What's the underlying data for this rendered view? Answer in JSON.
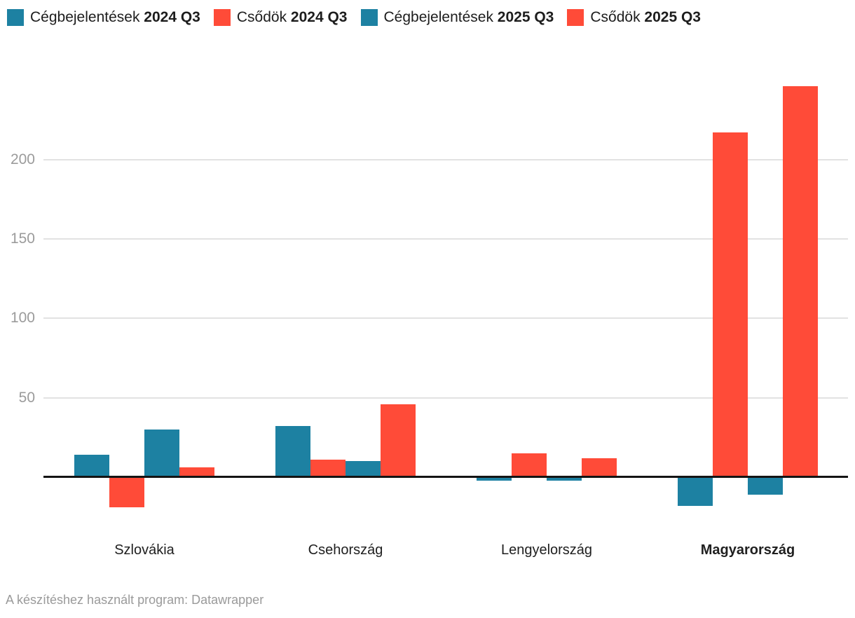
{
  "legend": {
    "items": [
      {
        "name": "Cégbejelentések",
        "period": "2024 Q3",
        "series_index": 0
      },
      {
        "name": "Csődök",
        "period": "2024 Q3",
        "series_index": 1
      },
      {
        "name": "Cégbejelentések",
        "period": "2025 Q3",
        "series_index": 2
      },
      {
        "name": "Csődök",
        "period": "2025 Q3",
        "series_index": 3
      }
    ]
  },
  "chart_data": {
    "type": "bar",
    "title": "",
    "categories": [
      "Szlovákia",
      "Csehország",
      "Lengyelország",
      "Magyarország"
    ],
    "bold_category": "Magyarország",
    "series": [
      {
        "name": "Cégbejelentések 2024 Q3",
        "color": "#1d81a2",
        "values": [
          14,
          32,
          -2,
          -18
        ]
      },
      {
        "name": "Csődök 2024 Q3",
        "color": "#ff4b38",
        "values": [
          -19,
          11,
          15,
          217
        ]
      },
      {
        "name": "Cégbejelentések 2025 Q3",
        "color": "#1d81a2",
        "values": [
          30,
          10,
          -2,
          -11
        ]
      },
      {
        "name": "Csődök 2025 Q3",
        "color": "#ff4b38",
        "values": [
          6,
          46,
          12,
          246
        ]
      }
    ],
    "xlabel": "",
    "ylabel": "",
    "yticks": [
      50,
      100,
      150,
      200
    ],
    "ylim": [
      -30,
      255
    ],
    "grid": "horizontal-only",
    "legend_position": "top-left",
    "zero_line": true
  },
  "colors": {
    "teal": "#1d81a2",
    "red": "#ff4b38",
    "gridline": "#e2e2e2",
    "axis_label": "#9b9b9b",
    "category_label": "#202020",
    "zero_line": "#141414",
    "footer_text": "#9a9a9a",
    "background": "#ffffff"
  },
  "footer": {
    "text": "A készítéshez használt program: Datawrapper"
  }
}
